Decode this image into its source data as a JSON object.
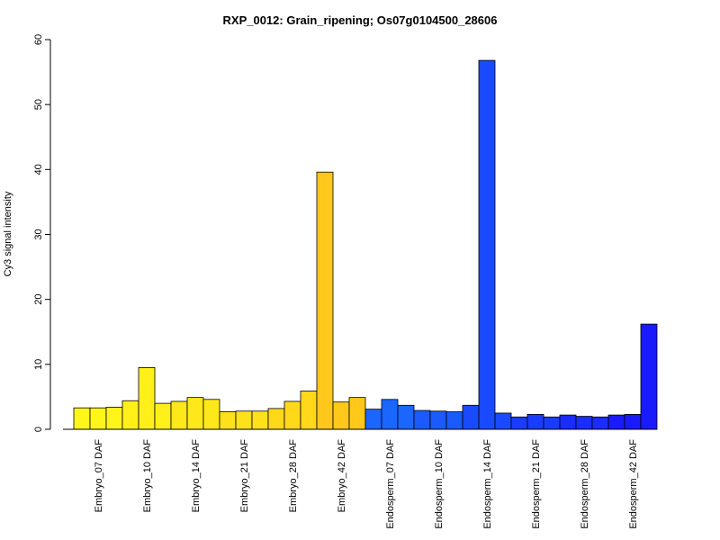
{
  "chart_data": {
    "type": "bar",
    "title": "RXP_0012: Grain_ripening; Os07g0104500_28606",
    "xlabel": "",
    "ylabel": "Cy3 signal intensity",
    "ylim": [
      0,
      60
    ],
    "yticks": [
      0,
      10,
      20,
      30,
      40,
      50,
      60
    ],
    "grid": false,
    "legend": "none",
    "replicates_per_group": 3,
    "groups": [
      {
        "label": "Embryo_07 DAF",
        "color": "#FFF51A",
        "values": [
          3.3,
          3.3,
          3.4
        ]
      },
      {
        "label": "Embryo_10 DAF",
        "color": "#FFF01A",
        "values": [
          4.4,
          9.5,
          4.0
        ]
      },
      {
        "label": "Embryo_14 DAF",
        "color": "#FFE81A",
        "values": [
          4.3,
          4.9,
          4.6
        ]
      },
      {
        "label": "Embryo_21 DAF",
        "color": "#FFE11A",
        "values": [
          2.7,
          2.8,
          2.8
        ]
      },
      {
        "label": "Embryo_28 DAF",
        "color": "#FFD81A",
        "values": [
          3.2,
          4.3,
          5.9
        ]
      },
      {
        "label": "Embryo_42 DAF",
        "color": "#FFC81A",
        "values": [
          39.6,
          4.2,
          4.9
        ]
      },
      {
        "label": "Endosperm_07 DAF",
        "color": "#1A66FF",
        "values": [
          3.1,
          4.6,
          3.7
        ]
      },
      {
        "label": "Endosperm_10 DAF",
        "color": "#1A5AFF",
        "values": [
          2.9,
          2.8,
          2.7
        ]
      },
      {
        "label": "Endosperm_14 DAF",
        "color": "#1A4AFF",
        "values": [
          3.7,
          56.8,
          2.5
        ]
      },
      {
        "label": "Endosperm_21 DAF",
        "color": "#1A3CFF",
        "values": [
          1.9,
          2.3,
          1.9
        ]
      },
      {
        "label": "Endosperm_28 DAF",
        "color": "#1A2CFF",
        "values": [
          2.2,
          2.0,
          1.9
        ]
      },
      {
        "label": "Endosperm_42 DAF",
        "color": "#1A1AFF",
        "values": [
          2.2,
          2.3,
          16.2
        ]
      }
    ]
  }
}
